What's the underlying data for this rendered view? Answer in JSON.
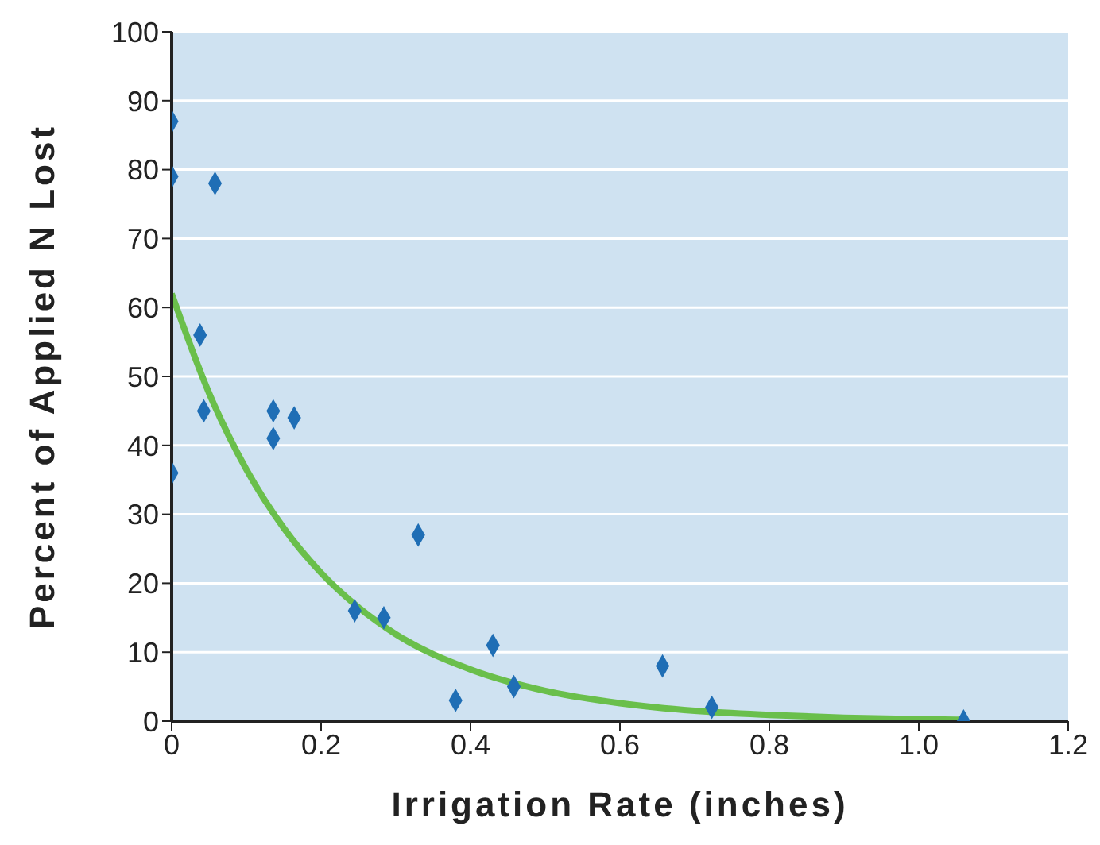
{
  "chart_data": {
    "type": "scatter",
    "xlabel": "Irrigation Rate (inches)",
    "ylabel": "Percent of Applied N Lost",
    "xlim": [
      0,
      1.2
    ],
    "ylim": [
      0,
      100
    ],
    "xticks": [
      0,
      0.2,
      0.4,
      0.6,
      0.8,
      {
        "value": 1,
        "label": "1.0"
      },
      1.2
    ],
    "yticks": [
      0,
      10,
      20,
      30,
      40,
      50,
      60,
      70,
      80,
      90,
      100
    ],
    "grid": "y",
    "marker": "diamond",
    "legend": false,
    "series": [
      {
        "color": "#1f6eb5",
        "x": [
          0,
          0,
          0.058,
          0.038,
          0.043,
          0,
          0.136,
          0.164,
          0.136,
          0.33,
          0.245,
          0.284,
          0.38,
          0.43,
          0.458,
          0.657,
          0.723,
          1.06
        ],
        "values": [
          87,
          79,
          78,
          56,
          45,
          36,
          45,
          44,
          41,
          27,
          16,
          15,
          3,
          11,
          5,
          8,
          2,
          0
        ]
      },
      {
        "type": "line",
        "color": "#6abf4b",
        "marker": "none",
        "x": [
          0,
          0.05,
          0.1,
          0.15,
          0.2,
          0.25,
          0.3,
          0.4,
          0.5,
          0.6,
          0.7,
          0.8,
          0.9,
          1.0,
          1.06
        ],
        "values": [
          62,
          47.6,
          36.5,
          28,
          21.5,
          16.5,
          12.6,
          7.5,
          4.4,
          2.6,
          1.5,
          0.9,
          0.5,
          0.3,
          0.2
        ]
      }
    ]
  }
}
